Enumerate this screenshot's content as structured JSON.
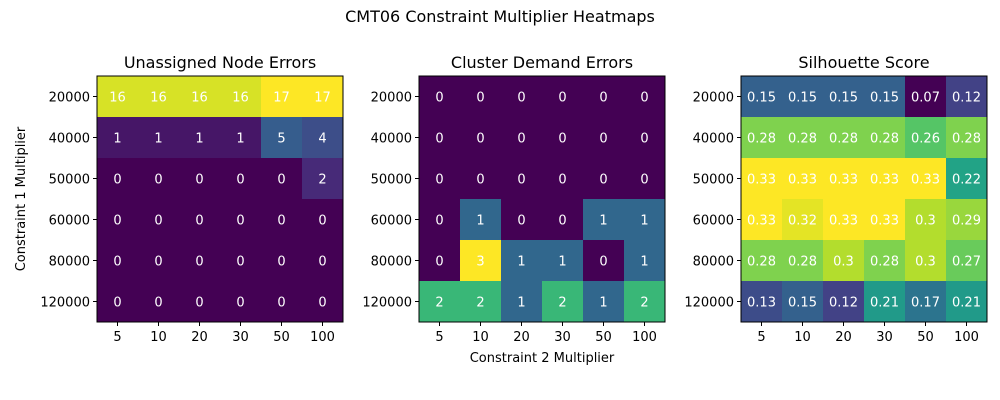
{
  "figure": {
    "title": "CMT06 Constraint Multiplier Heatmaps"
  },
  "chart_data": [
    {
      "type": "heatmap",
      "title": "Unassigned Node Errors",
      "xlabel": "",
      "ylabel": "Constraint 1 Multiplier",
      "x_categories": [
        "5",
        "10",
        "20",
        "30",
        "50",
        "100"
      ],
      "y_categories": [
        "20000",
        "40000",
        "50000",
        "60000",
        "80000",
        "120000"
      ],
      "vmin": 0,
      "vmax": 17,
      "values": [
        [
          16,
          16,
          16,
          16,
          17,
          17
        ],
        [
          1,
          1,
          1,
          1,
          5,
          4
        ],
        [
          0,
          0,
          0,
          0,
          0,
          2
        ],
        [
          0,
          0,
          0,
          0,
          0,
          0
        ],
        [
          0,
          0,
          0,
          0,
          0,
          0
        ],
        [
          0,
          0,
          0,
          0,
          0,
          0
        ]
      ],
      "labels": [
        [
          "16",
          "16",
          "16",
          "16",
          "17",
          "17"
        ],
        [
          "1",
          "1",
          "1",
          "1",
          "5",
          "4"
        ],
        [
          "0",
          "0",
          "0",
          "0",
          "0",
          "2"
        ],
        [
          "0",
          "0",
          "0",
          "0",
          "0",
          "0"
        ],
        [
          "0",
          "0",
          "0",
          "0",
          "0",
          "0"
        ],
        [
          "0",
          "0",
          "0",
          "0",
          "0",
          "0"
        ]
      ],
      "colormap": "viridis"
    },
    {
      "type": "heatmap",
      "title": "Cluster Demand Errors",
      "xlabel": "Constraint 2 Multiplier",
      "ylabel": "",
      "x_categories": [
        "5",
        "10",
        "20",
        "30",
        "50",
        "100"
      ],
      "y_categories": [
        "20000",
        "40000",
        "50000",
        "60000",
        "80000",
        "120000"
      ],
      "vmin": 0,
      "vmax": 3,
      "values": [
        [
          0,
          0,
          0,
          0,
          0,
          0
        ],
        [
          0,
          0,
          0,
          0,
          0,
          0
        ],
        [
          0,
          0,
          0,
          0,
          0,
          0
        ],
        [
          0,
          1,
          0,
          0,
          1,
          1
        ],
        [
          0,
          3,
          1,
          1,
          0,
          1
        ],
        [
          2,
          2,
          1,
          2,
          1,
          2
        ]
      ],
      "labels": [
        [
          "0",
          "0",
          "0",
          "0",
          "0",
          "0"
        ],
        [
          "0",
          "0",
          "0",
          "0",
          "0",
          "0"
        ],
        [
          "0",
          "0",
          "0",
          "0",
          "0",
          "0"
        ],
        [
          "0",
          "1",
          "0",
          "0",
          "1",
          "1"
        ],
        [
          "0",
          "3",
          "1",
          "1",
          "0",
          "1"
        ],
        [
          "2",
          "2",
          "1",
          "2",
          "1",
          "2"
        ]
      ],
      "colormap": "viridis"
    },
    {
      "type": "heatmap",
      "title": "Silhouette Score",
      "xlabel": "",
      "ylabel": "",
      "x_categories": [
        "5",
        "10",
        "20",
        "30",
        "50",
        "100"
      ],
      "y_categories": [
        "20000",
        "40000",
        "50000",
        "60000",
        "80000",
        "120000"
      ],
      "vmin": 0.07,
      "vmax": 0.33,
      "values": [
        [
          0.15,
          0.15,
          0.15,
          0.15,
          0.07,
          0.12
        ],
        [
          0.28,
          0.28,
          0.28,
          0.28,
          0.26,
          0.28
        ],
        [
          0.33,
          0.33,
          0.33,
          0.33,
          0.33,
          0.22
        ],
        [
          0.33,
          0.32,
          0.33,
          0.33,
          0.3,
          0.29
        ],
        [
          0.28,
          0.28,
          0.3,
          0.28,
          0.3,
          0.27
        ],
        [
          0.13,
          0.15,
          0.12,
          0.21,
          0.17,
          0.21
        ]
      ],
      "labels": [
        [
          "0.15",
          "0.15",
          "0.15",
          "0.15",
          "0.07",
          "0.12"
        ],
        [
          "0.28",
          "0.28",
          "0.28",
          "0.28",
          "0.26",
          "0.28"
        ],
        [
          "0.33",
          "0.33",
          "0.33",
          "0.33",
          "0.33",
          "0.22"
        ],
        [
          "0.33",
          "0.32",
          "0.33",
          "0.33",
          "0.3",
          "0.29"
        ],
        [
          "0.28",
          "0.28",
          "0.3",
          "0.28",
          "0.3",
          "0.27"
        ],
        [
          "0.13",
          "0.15",
          "0.12",
          "0.21",
          "0.17",
          "0.21"
        ]
      ],
      "colormap": "viridis"
    }
  ]
}
